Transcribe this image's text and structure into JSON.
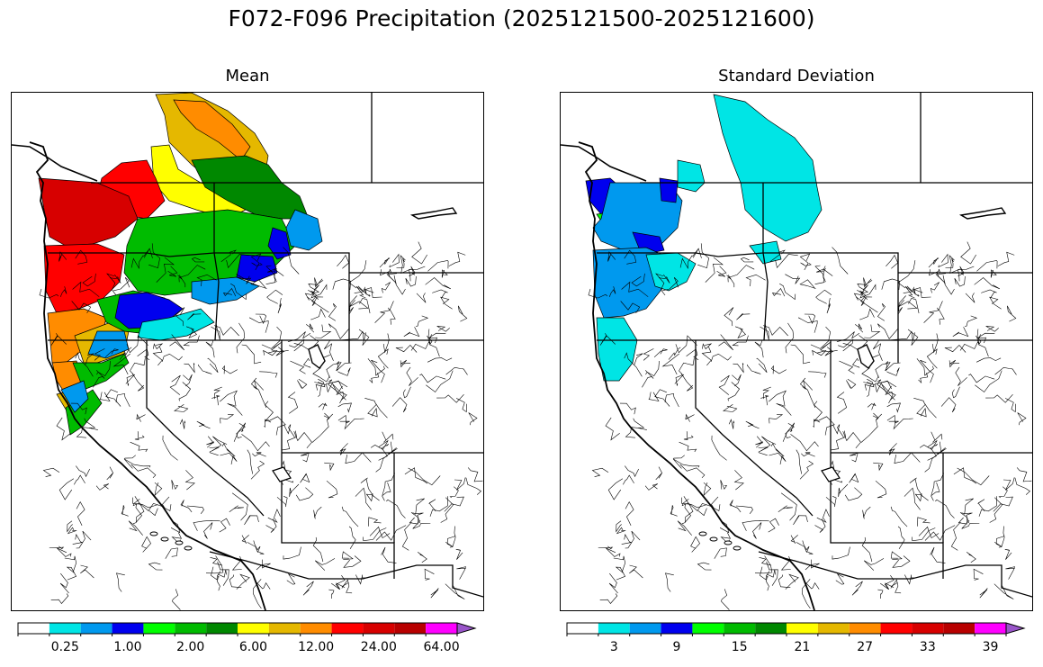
{
  "figure": {
    "title": "F072-F096 Precipitation (2025121500-2025121600)"
  },
  "panels": [
    {
      "title": "Mean",
      "colorbar": {
        "colors": [
          "#ffffff",
          "#00e5e5",
          "#0099ee",
          "#0000ee",
          "#00ff00",
          "#00bb00",
          "#008800",
          "#ffff00",
          "#e5b800",
          "#ff8c00",
          "#ff0000",
          "#d70000",
          "#b80000",
          "#ff00ff",
          "#9955c9"
        ],
        "tick_labels": [
          "0.25",
          "1.00",
          "2.00",
          "6.00",
          "12.00",
          "24.00",
          "64.00"
        ]
      }
    },
    {
      "title": "Standard Deviation",
      "colorbar": {
        "colors": [
          "#ffffff",
          "#00e5e5",
          "#0099ee",
          "#0000ee",
          "#00ff00",
          "#00bb00",
          "#008800",
          "#ffff00",
          "#e5b800",
          "#ff8c00",
          "#ff0000",
          "#d70000",
          "#b80000",
          "#ff00ff",
          "#9955c9"
        ],
        "tick_labels": [
          "3",
          "9",
          "15",
          "21",
          "27",
          "33",
          "39"
        ]
      }
    }
  ]
}
